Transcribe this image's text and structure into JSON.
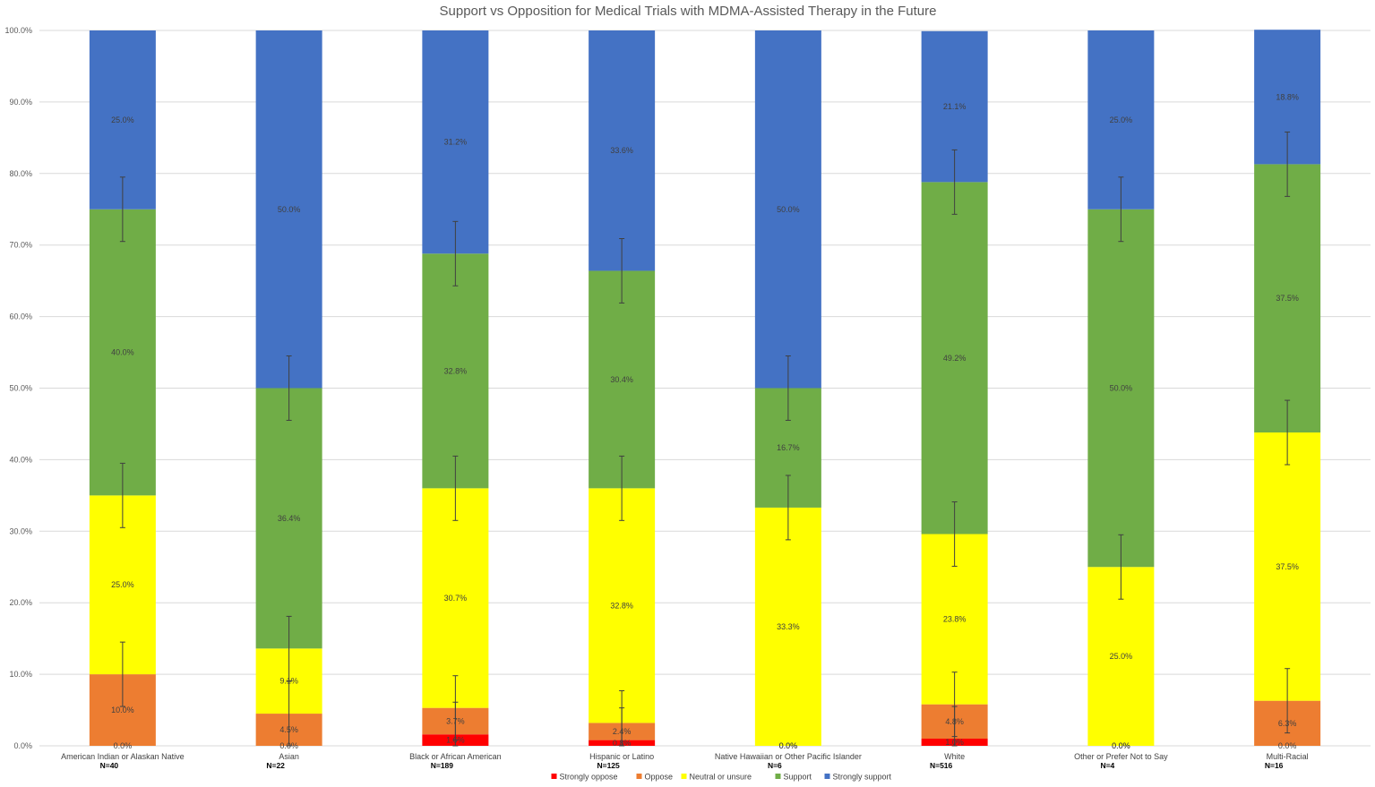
{
  "chart_data": {
    "type": "bar",
    "stacked": true,
    "title": "Support vs Opposition for Medical Trials with MDMA-Assisted Therapy in the Future",
    "xlabel": "",
    "ylabel": "",
    "ylim": [
      0,
      100
    ],
    "yticks": [
      "0.0%",
      "10.0%",
      "20.0%",
      "30.0%",
      "40.0%",
      "50.0%",
      "60.0%",
      "70.0%",
      "80.0%",
      "90.0%",
      "100.0%"
    ],
    "grid": true,
    "legend_position": "bottom",
    "categories": [
      "American Indian or Alaskan Native",
      "Asian",
      "Black or African American",
      "Hispanic or Latino",
      "Native Hawaiian or Other Pacific Islander",
      "White",
      "Other or Prefer Not to Say",
      "Multi-Racial"
    ],
    "sample_sizes": [
      "N=40",
      "N=22",
      "N=189",
      "N=125",
      "N=6",
      "N=516",
      "N=4",
      "N=16"
    ],
    "series": [
      {
        "name": "Strongly oppose",
        "color": "#ff0000",
        "values": [
          0.0,
          0.0,
          1.6,
          0.8,
          0.0,
          1.0,
          0.0,
          0.0
        ],
        "labels": [
          "0.0%",
          "0.0%",
          "1.6%",
          "0.8%",
          "0.0%",
          "1.0%",
          "0.0%",
          "0.0%"
        ]
      },
      {
        "name": "Oppose",
        "color": "#ed7d31",
        "values": [
          10.0,
          4.5,
          3.7,
          2.4,
          0.0,
          4.8,
          0.0,
          6.3
        ],
        "labels": [
          "10.0%",
          "4.5%",
          "3.7%",
          "2.4%",
          "0.0%",
          "4.8%",
          "0.0%",
          "6.3%"
        ]
      },
      {
        "name": "Neutral or unsure",
        "color": "#ffff00",
        "values": [
          25.0,
          9.1,
          30.7,
          32.8,
          33.3,
          23.8,
          25.0,
          37.5
        ],
        "labels": [
          "25.0%",
          "9.1%",
          "30.7%",
          "32.8%",
          "33.3%",
          "23.8%",
          "25.0%",
          "37.5%"
        ]
      },
      {
        "name": "Support",
        "color": "#70ad47",
        "values": [
          40.0,
          36.4,
          32.8,
          30.4,
          16.7,
          49.2,
          50.0,
          37.5
        ],
        "labels": [
          "40.0%",
          "36.4%",
          "32.8%",
          "30.4%",
          "16.7%",
          "49.2%",
          "50.0%",
          "37.5%"
        ]
      },
      {
        "name": "Strongly support",
        "color": "#4472c4",
        "values": [
          25.0,
          50.0,
          31.2,
          33.6,
          50.0,
          21.1,
          25.0,
          18.8
        ],
        "labels": [
          "25.0%",
          "50.0%",
          "31.2%",
          "33.6%",
          "50.0%",
          "21.1%",
          "25.0%",
          "18.8%"
        ]
      }
    ]
  }
}
